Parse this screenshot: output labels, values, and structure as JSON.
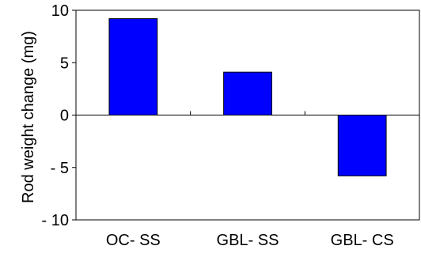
{
  "chart_data": {
    "type": "bar",
    "title": "",
    "xlabel": "",
    "ylabel": "Rod weight  change (mg)",
    "categories": [
      "OC- SS",
      "GBL- SS",
      "GBL- CS"
    ],
    "values": [
      9.2,
      4.1,
      -5.8
    ],
    "ylim": [
      -10,
      10
    ],
    "yticks": [
      10,
      5,
      0,
      -5,
      -10
    ],
    "ytick_labels": [
      "10",
      "5",
      "0",
      "- 5",
      "- 10"
    ],
    "bar_color": "#0000FF",
    "bar_edge_color": "#000000",
    "grid": false,
    "legend": "none"
  }
}
